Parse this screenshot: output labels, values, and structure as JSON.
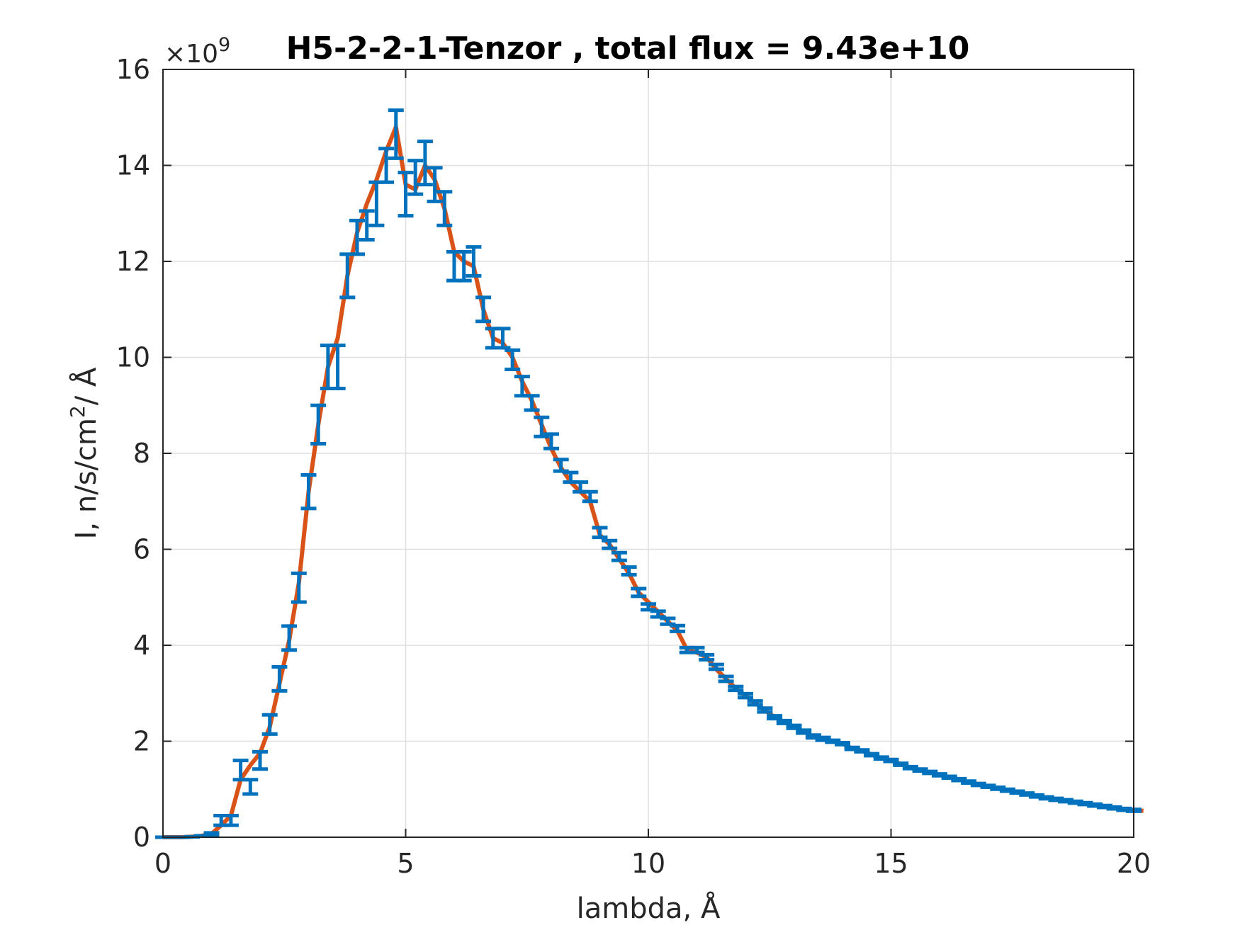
{
  "chart_data": {
    "type": "line",
    "title": "H5-2-2-1-Tenzor , total flux =  9.43e+10",
    "xlabel": "lambda,  Å",
    "ylabel": "I, n/s/cm²/ Å",
    "ylabel_parts": {
      "pre": "I, n/s/cm",
      "sup": "2",
      "post": "/ Å"
    },
    "y_multiplier": {
      "base": "×10",
      "exp": "9"
    },
    "xlim": [
      0,
      20
    ],
    "ylim": [
      0,
      16
    ],
    "xticks": [
      "0",
      "5",
      "10",
      "15",
      "20"
    ],
    "yticks": [
      "0",
      "2",
      "4",
      "6",
      "8",
      "10",
      "12",
      "14",
      "16"
    ],
    "grid": true,
    "series": [
      {
        "color": "#d95319",
        "style": "line",
        "x": [
          0,
          0.2,
          0.4,
          0.6,
          0.8,
          1.0,
          1.2,
          1.4,
          1.6,
          1.8,
          2.0,
          2.2,
          2.4,
          2.6,
          2.8,
          3.0,
          3.2,
          3.4,
          3.6,
          3.8,
          4.0,
          4.2,
          4.4,
          4.6,
          4.8,
          5.0,
          5.2,
          5.4,
          5.6,
          5.8,
          6.0,
          6.2,
          6.4,
          6.6,
          6.8,
          7.0,
          7.2,
          7.4,
          7.6,
          7.8,
          8.0,
          8.2,
          8.4,
          8.6,
          8.8,
          9.0,
          9.2,
          9.4,
          9.6,
          9.8,
          10.0,
          10.2,
          10.4,
          10.6,
          10.8,
          11.0,
          11.2,
          11.4,
          11.6,
          11.8,
          12.0,
          12.2,
          12.4,
          12.6,
          12.8,
          13.0,
          13.2,
          13.4,
          13.6,
          13.8,
          14.0,
          14.2,
          14.4,
          14.6,
          14.8,
          15.0,
          15.2,
          15.4,
          15.6,
          15.8,
          16.0,
          16.2,
          16.4,
          16.6,
          16.8,
          17.0,
          17.2,
          17.4,
          17.6,
          17.8,
          18.0,
          18.2,
          18.4,
          18.6,
          18.8,
          19.0,
          19.2,
          19.4,
          19.6,
          19.8,
          20.2
        ],
        "y": [
          0,
          0,
          0,
          0.01,
          0.03,
          0.07,
          0.25,
          0.45,
          1.2,
          1.5,
          1.75,
          2.3,
          3.2,
          4.1,
          5.3,
          7.2,
          8.6,
          9.8,
          10.4,
          11.7,
          12.6,
          13.2,
          13.7,
          14.3,
          14.8,
          13.6,
          13.5,
          14.0,
          13.7,
          13.1,
          12.2,
          12.0,
          11.9,
          11.0,
          10.4,
          10.3,
          10.0,
          9.5,
          9.1,
          8.6,
          8.1,
          7.7,
          7.4,
          7.2,
          7.0,
          6.3,
          6.1,
          5.8,
          5.5,
          5.1,
          4.9,
          4.7,
          4.5,
          4.3,
          3.9,
          3.85,
          3.75,
          3.5,
          3.3,
          3.1,
          2.95,
          2.8,
          2.65,
          2.5,
          2.4,
          2.3,
          2.2,
          2.1,
          2.05,
          2.0,
          1.95,
          1.85,
          1.8,
          1.72,
          1.65,
          1.6,
          1.52,
          1.45,
          1.4,
          1.35,
          1.3,
          1.25,
          1.2,
          1.15,
          1.1,
          1.06,
          1.02,
          0.98,
          0.94,
          0.9,
          0.86,
          0.82,
          0.79,
          0.76,
          0.73,
          0.7,
          0.67,
          0.64,
          0.61,
          0.58,
          0.55
        ]
      },
      {
        "color": "#0072bd",
        "style": "errorbar",
        "x": [
          0,
          0.2,
          0.4,
          0.6,
          0.8,
          1.0,
          1.2,
          1.4,
          1.6,
          1.8,
          2.0,
          2.2,
          2.4,
          2.6,
          2.8,
          3.0,
          3.2,
          3.4,
          3.6,
          3.8,
          4.0,
          4.2,
          4.4,
          4.6,
          4.8,
          5.0,
          5.2,
          5.4,
          5.6,
          5.8,
          6.0,
          6.2,
          6.4,
          6.6,
          6.8,
          7.0,
          7.2,
          7.4,
          7.6,
          7.8,
          8.0,
          8.2,
          8.4,
          8.6,
          8.8,
          9.0,
          9.2,
          9.4,
          9.6,
          9.8,
          10.0,
          10.2,
          10.4,
          10.6,
          10.8,
          11.0,
          11.2,
          11.4,
          11.6,
          11.8,
          12.0,
          12.2,
          12.4,
          12.6,
          12.8,
          13.0,
          13.2,
          13.4,
          13.6,
          13.8,
          14.0,
          14.2,
          14.4,
          14.6,
          14.8,
          15.0,
          15.2,
          15.4,
          15.6,
          15.8,
          16.0,
          16.2,
          16.4,
          16.6,
          16.8,
          17.0,
          17.2,
          17.4,
          17.6,
          17.8,
          18.0,
          18.2,
          18.4,
          18.6,
          18.8,
          19.0,
          19.2,
          19.4,
          19.6,
          19.8,
          20.0
        ],
        "y": [
          0,
          0,
          0,
          0.01,
          0.03,
          0.07,
          0.35,
          0.35,
          1.4,
          1.05,
          1.6,
          2.35,
          3.3,
          4.15,
          5.2,
          7.2,
          8.6,
          9.8,
          9.8,
          11.7,
          12.5,
          12.75,
          13.2,
          14.0,
          14.65,
          13.4,
          13.75,
          14.05,
          13.6,
          13.1,
          11.9,
          11.9,
          12.0,
          11.0,
          10.4,
          10.4,
          9.95,
          9.4,
          9.05,
          8.55,
          8.25,
          7.75,
          7.5,
          7.3,
          7.1,
          6.35,
          6.1,
          5.85,
          5.55,
          5.1,
          4.8,
          4.65,
          4.5,
          4.35,
          3.9,
          3.9,
          3.75,
          3.55,
          3.3,
          3.1,
          2.95,
          2.8,
          2.65,
          2.5,
          2.4,
          2.3,
          2.2,
          2.1,
          2.05,
          2.0,
          1.95,
          1.85,
          1.8,
          1.72,
          1.65,
          1.6,
          1.52,
          1.45,
          1.4,
          1.35,
          1.3,
          1.25,
          1.2,
          1.15,
          1.1,
          1.06,
          1.02,
          0.98,
          0.94,
          0.9,
          0.86,
          0.82,
          0.79,
          0.76,
          0.73,
          0.7,
          0.67,
          0.64,
          0.61,
          0.58,
          0.56
        ],
        "err": [
          0,
          0,
          0,
          0,
          0,
          0.02,
          0.1,
          0.1,
          0.2,
          0.15,
          0.18,
          0.2,
          0.25,
          0.25,
          0.3,
          0.35,
          0.4,
          0.45,
          0.45,
          0.45,
          0.35,
          0.3,
          0.45,
          0.35,
          0.5,
          0.45,
          0.35,
          0.45,
          0.35,
          0.35,
          0.3,
          0.3,
          0.3,
          0.25,
          0.2,
          0.2,
          0.2,
          0.2,
          0.15,
          0.2,
          0.15,
          0.12,
          0.1,
          0.1,
          0.1,
          0.1,
          0.08,
          0.08,
          0.08,
          0.08,
          0.06,
          0.06,
          0.06,
          0.06,
          0.05,
          0.05,
          0.05,
          0.05,
          0.05,
          0.04,
          0.04,
          0.04,
          0.04,
          0.03,
          0.03,
          0.03,
          0.03,
          0.03,
          0.03,
          0.02,
          0.02,
          0.02,
          0.02,
          0.02,
          0.02,
          0.02,
          0.02,
          0.02,
          0.02,
          0.02,
          0.02,
          0.02,
          0.02,
          0.02,
          0.02,
          0.02,
          0.02,
          0.02,
          0.02,
          0.02,
          0.02,
          0.02,
          0.02,
          0.02,
          0.02,
          0.02,
          0.02,
          0.02,
          0.02,
          0.02,
          0.02
        ]
      }
    ]
  }
}
